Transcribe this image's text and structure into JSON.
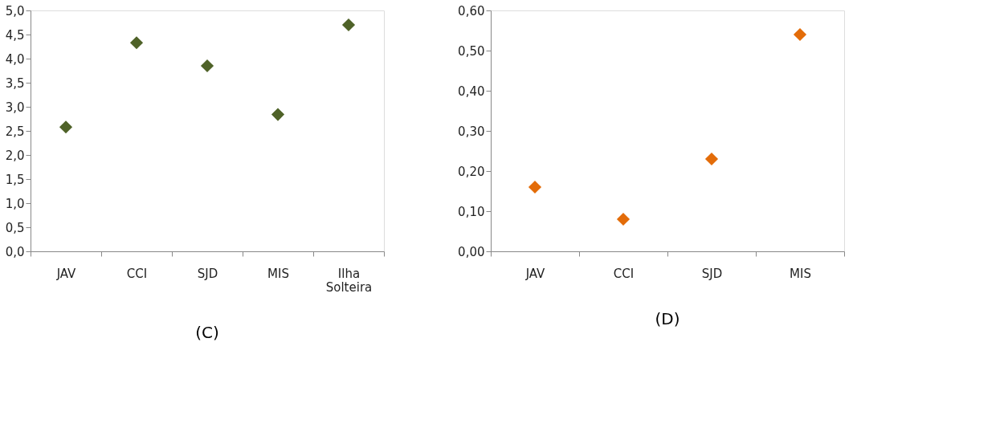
{
  "chart_data": [
    {
      "type": "scatter",
      "title": "(C)",
      "categories": [
        "JAV",
        "CCI",
        "SJD",
        "MIS",
        "Ilha Solteira"
      ],
      "values": [
        2.58,
        4.33,
        3.85,
        2.84,
        4.7
      ],
      "color": "#4f6228",
      "marker": "diamond",
      "grid": false,
      "ylim": [
        0,
        5
      ],
      "yticks": [
        {
          "value": 0,
          "label": "0,0"
        },
        {
          "value": 0.5,
          "label": "0,5"
        },
        {
          "value": 1,
          "label": "1,0"
        },
        {
          "value": 1.5,
          "label": "1,5"
        },
        {
          "value": 2,
          "label": "2,0"
        },
        {
          "value": 2.5,
          "label": "2,5"
        },
        {
          "value": 3,
          "label": "3,0"
        },
        {
          "value": 3.5,
          "label": "3,5"
        },
        {
          "value": 4,
          "label": "4,0"
        },
        {
          "value": 4.5,
          "label": "4,5"
        },
        {
          "value": 5,
          "label": "5,0"
        }
      ]
    },
    {
      "type": "scatter",
      "title": "(D)",
      "categories": [
        "JAV",
        "CCI",
        "SJD",
        "MIS"
      ],
      "values": [
        0.16,
        0.08,
        0.23,
        0.54
      ],
      "color": "#e36c09",
      "marker": "diamond",
      "grid": false,
      "ylim": [
        0,
        0.6
      ],
      "yticks": [
        {
          "value": 0,
          "label": "0,00"
        },
        {
          "value": 0.1,
          "label": "0,10"
        },
        {
          "value": 0.2,
          "label": "0,20"
        },
        {
          "value": 0.3,
          "label": "0,30"
        },
        {
          "value": 0.4,
          "label": "0,40"
        },
        {
          "value": 0.5,
          "label": "0,50"
        },
        {
          "value": 0.6,
          "label": "0,60"
        }
      ]
    }
  ]
}
